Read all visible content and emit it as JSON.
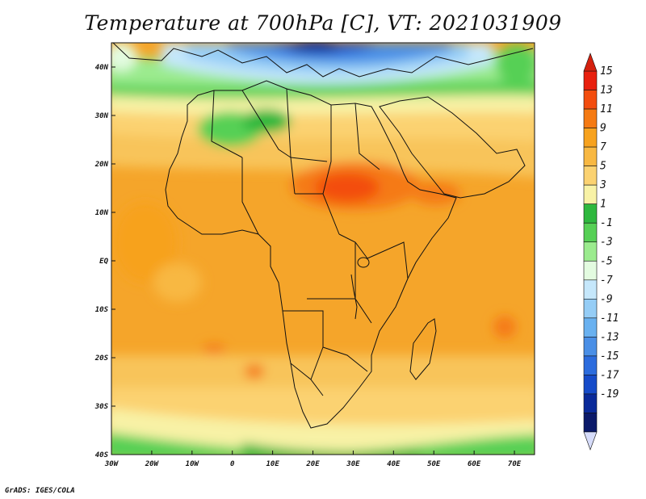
{
  "title": "Temperature at 700hPa [C], VT: 2021031909",
  "credit": "GrADS: IGES/COLA",
  "map": {
    "lon_range": [
      -30,
      75
    ],
    "lat_range": [
      -40,
      45
    ],
    "lon_ticks": [
      {
        "value": -30,
        "label": "30W"
      },
      {
        "value": -20,
        "label": "20W"
      },
      {
        "value": -10,
        "label": "10W"
      },
      {
        "value": 0,
        "label": "0"
      },
      {
        "value": 10,
        "label": "10E"
      },
      {
        "value": 20,
        "label": "20E"
      },
      {
        "value": 30,
        "label": "30E"
      },
      {
        "value": 40,
        "label": "40E"
      },
      {
        "value": 50,
        "label": "50E"
      },
      {
        "value": 60,
        "label": "60E"
      },
      {
        "value": 70,
        "label": "70E"
      }
    ],
    "lat_ticks": [
      {
        "value": 40,
        "label": "40N"
      },
      {
        "value": 30,
        "label": "30N"
      },
      {
        "value": 20,
        "label": "20N"
      },
      {
        "value": 10,
        "label": "10N"
      },
      {
        "value": 0,
        "label": "EQ"
      },
      {
        "value": -10,
        "label": "10S"
      },
      {
        "value": -20,
        "label": "20S"
      },
      {
        "value": -30,
        "label": "30S"
      },
      {
        "value": -40,
        "label": "40S"
      }
    ]
  },
  "colorbar": {
    "labels": [
      "15",
      "13",
      "11",
      "9",
      "7",
      "5",
      "3",
      "1",
      "-1",
      "-3",
      "-5",
      "-7",
      "-9",
      "-11",
      "-13",
      "-15",
      "-17",
      "-19"
    ],
    "colors": [
      "#e8200e",
      "#f34d0e",
      "#f57a12",
      "#f7a21e",
      "#f8b842",
      "#fbd271",
      "#f8f2a6",
      "#2eb83e",
      "#56d055",
      "#9beb8e",
      "#e3fbe0",
      "#c5e7fb",
      "#95cdf6",
      "#69b1f0",
      "#4a8fe6",
      "#2c6cdd",
      "#164bc9",
      "#0a2a9a",
      "#0b1a6a"
    ],
    "end_colors": {
      "top": "#d4200e",
      "bottom": "#d6dcfa"
    }
  }
}
